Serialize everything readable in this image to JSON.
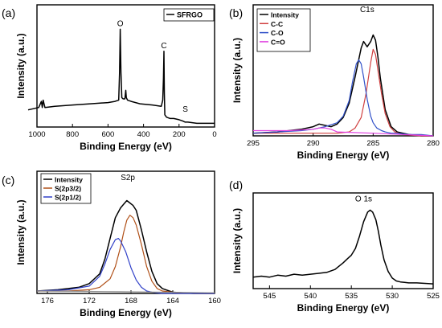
{
  "chart_data": [
    {
      "type": "line",
      "panel_label": "(a)",
      "title": "",
      "xlabel": "Binding Energy (eV)",
      "ylabel": "Intensity (a.u.)",
      "xlim": [
        1000,
        0
      ],
      "x_ticks": [
        "1000",
        "800",
        "600",
        "400",
        "200",
        "0"
      ],
      "x_reversed": true,
      "legend": {
        "position": "top-right",
        "entries": [
          "SFRGO"
        ]
      },
      "annotations": [
        {
          "text": "O",
          "x": 531,
          "y": 0.8
        },
        {
          "text": "C",
          "x": 285,
          "y": 0.62
        },
        {
          "text": "S",
          "x": 165,
          "y": 0.1
        }
      ],
      "series": [
        {
          "name": "SFRGO",
          "color": "#000000",
          "x": [
            1050,
            1020,
            990,
            975,
            970,
            965,
            955,
            900,
            800,
            700,
            600,
            560,
            540,
            535,
            531,
            527,
            522,
            515,
            505,
            500,
            497,
            490,
            470,
            420,
            350,
            300,
            292,
            288,
            285,
            283,
            280,
            270,
            250,
            230,
            200,
            180,
            165,
            150,
            100,
            50,
            0
          ],
          "y": [
            0.14,
            0.15,
            0.16,
            0.21,
            0.16,
            0.22,
            0.16,
            0.17,
            0.18,
            0.19,
            0.2,
            0.21,
            0.22,
            0.45,
            0.8,
            0.45,
            0.24,
            0.23,
            0.23,
            0.3,
            0.24,
            0.22,
            0.21,
            0.19,
            0.18,
            0.17,
            0.22,
            0.4,
            0.62,
            0.28,
            0.1,
            0.08,
            0.07,
            0.07,
            0.06,
            0.05,
            0.04,
            0.04,
            0.03,
            0.03,
            0.03
          ]
        }
      ]
    },
    {
      "type": "line",
      "panel_label": "(b)",
      "title": "",
      "xlabel": "Binding Energy (eV)",
      "ylabel": "Intensity (a.u.)",
      "xlim": [
        295,
        280
      ],
      "x_ticks": [
        "295",
        "290",
        "285",
        "280"
      ],
      "x_reversed": true,
      "legend": {
        "position": "top-left",
        "entries": [
          "Intensity",
          "C-C",
          "C-O",
          "C=O"
        ]
      },
      "annotations": [
        {
          "text": "C1s",
          "x": 285.5,
          "y": 0.92
        }
      ],
      "series": [
        {
          "name": "Intensity",
          "color": "#000000",
          "x": [
            295,
            293,
            291,
            290,
            289.5,
            289,
            288.5,
            288,
            287.5,
            287,
            286.5,
            286,
            285.8,
            285.5,
            285.2,
            285,
            284.8,
            284.6,
            284.4,
            284,
            283.5,
            283,
            282,
            281,
            280
          ],
          "y": [
            0.02,
            0.03,
            0.05,
            0.07,
            0.09,
            0.08,
            0.07,
            0.09,
            0.14,
            0.25,
            0.45,
            0.67,
            0.72,
            0.68,
            0.72,
            0.77,
            0.73,
            0.6,
            0.44,
            0.2,
            0.07,
            0.03,
            0.01,
            0.0,
            0.0
          ]
        },
        {
          "name": "C-C",
          "color": "#d04040",
          "x": [
            295,
            290,
            288,
            287,
            286.5,
            286,
            285.6,
            285.2,
            285,
            284.8,
            284.6,
            284.3,
            284,
            283.6,
            283.2,
            282.5,
            281,
            280
          ],
          "y": [
            0.02,
            0.02,
            0.02,
            0.03,
            0.06,
            0.14,
            0.32,
            0.56,
            0.66,
            0.62,
            0.5,
            0.32,
            0.17,
            0.07,
            0.03,
            0.01,
            0.0,
            0.0
          ]
        },
        {
          "name": "C-O",
          "color": "#3050c8",
          "x": [
            295,
            293,
            291,
            290,
            289,
            288,
            287.5,
            287,
            286.7,
            286.4,
            286.2,
            286,
            285.8,
            285.5,
            285.2,
            285,
            284.7,
            284.3,
            284,
            283.5,
            283,
            282,
            281,
            280
          ],
          "y": [
            0.02,
            0.03,
            0.04,
            0.05,
            0.07,
            0.1,
            0.15,
            0.27,
            0.42,
            0.55,
            0.58,
            0.55,
            0.45,
            0.28,
            0.15,
            0.1,
            0.06,
            0.04,
            0.03,
            0.02,
            0.02,
            0.01,
            0.01,
            0.0
          ]
        },
        {
          "name": "C=O",
          "color": "#e040e0",
          "x": [
            295,
            292,
            290,
            289.5,
            289,
            288.5,
            288,
            285,
            280
          ],
          "y": [
            0.04,
            0.04,
            0.05,
            0.06,
            0.06,
            0.05,
            0.03,
            0.02,
            0.0
          ]
        }
      ]
    },
    {
      "type": "line",
      "panel_label": "(c)",
      "title": "",
      "xlabel": "Binding Energy (eV)",
      "ylabel": "Intensity (a.u.)",
      "xlim": [
        177,
        160
      ],
      "x_ticks": [
        "176",
        "172",
        "168",
        "164",
        "160"
      ],
      "x_reversed": true,
      "legend": {
        "position": "top-left",
        "entries": [
          "Intensity",
          "S(2p3/2)",
          "S(2p1/2)"
        ]
      },
      "annotations": [
        {
          "text": "S2p",
          "x": 168.3,
          "y": 0.9
        }
      ],
      "series": [
        {
          "name": "Intensity",
          "color": "#000000",
          "x": [
            177,
            175,
            173,
            172,
            171,
            170.5,
            170,
            169.5,
            169,
            168.7,
            168.4,
            168.1,
            167.8,
            167.5,
            167,
            166.5,
            166,
            165.5,
            165,
            164,
            162,
            160
          ],
          "y": [
            0.02,
            0.03,
            0.05,
            0.08,
            0.16,
            0.28,
            0.45,
            0.62,
            0.7,
            0.73,
            0.76,
            0.74,
            0.72,
            0.68,
            0.52,
            0.34,
            0.18,
            0.08,
            0.04,
            0.01,
            0.0,
            0.0
          ]
        },
        {
          "name": "S(2p3/2)",
          "color": "#b05018",
          "x": [
            177,
            174,
            172,
            171,
            170,
            169.5,
            169,
            168.7,
            168.4,
            168.1,
            167.8,
            167.5,
            167,
            166.5,
            166,
            165.5,
            165,
            164,
            162,
            160
          ],
          "y": [
            0.02,
            0.02,
            0.03,
            0.05,
            0.12,
            0.22,
            0.38,
            0.5,
            0.6,
            0.64,
            0.62,
            0.56,
            0.4,
            0.22,
            0.1,
            0.04,
            0.02,
            0.01,
            0.0,
            0.0
          ]
        },
        {
          "name": "S(2p1/2)",
          "color": "#3040c8",
          "x": [
            177,
            174,
            172,
            171,
            170.5,
            170,
            169.5,
            169.2,
            169,
            168.5,
            168,
            167.5,
            167,
            166.5,
            166,
            165,
            164,
            162,
            160
          ],
          "y": [
            0.02,
            0.03,
            0.06,
            0.14,
            0.24,
            0.36,
            0.44,
            0.45,
            0.43,
            0.34,
            0.21,
            0.11,
            0.05,
            0.02,
            0.01,
            0.0,
            0.0,
            0.0,
            0.0
          ]
        },
        {
          "name": "",
          "color": "#909090",
          "x": [
            177,
            173,
            169,
            165,
            160
          ],
          "y": [
            0.02,
            0.017,
            0.014,
            0.01,
            0.005
          ]
        }
      ]
    },
    {
      "type": "line",
      "panel_label": "(d)",
      "title": "",
      "xlabel": "Binding Energy (eV)",
      "ylabel": "Intensity (a.u.)",
      "xlim": [
        547,
        525
      ],
      "x_ticks": [
        "545",
        "540",
        "535",
        "530",
        "525"
      ],
      "x_reversed": true,
      "annotations": [
        {
          "text": "O 1s",
          "x": 533.5,
          "y": 0.88
        }
      ],
      "series": [
        {
          "name": "O 1s",
          "color": "#000000",
          "x": [
            547,
            546,
            545,
            544,
            543,
            542,
            541,
            540,
            539,
            538,
            537,
            536,
            535.5,
            535,
            534.5,
            534,
            533.5,
            533,
            532.7,
            532.4,
            532,
            531.7,
            531.4,
            531,
            530.5,
            530,
            529.5,
            529,
            528.5,
            528,
            527,
            526,
            525
          ],
          "y": [
            0.12,
            0.13,
            0.12,
            0.14,
            0.13,
            0.15,
            0.14,
            0.15,
            0.16,
            0.17,
            0.2,
            0.27,
            0.31,
            0.35,
            0.42,
            0.55,
            0.7,
            0.8,
            0.82,
            0.8,
            0.72,
            0.6,
            0.46,
            0.3,
            0.18,
            0.11,
            0.08,
            0.07,
            0.065,
            0.06,
            0.06,
            0.055,
            0.05
          ]
        }
      ]
    }
  ]
}
